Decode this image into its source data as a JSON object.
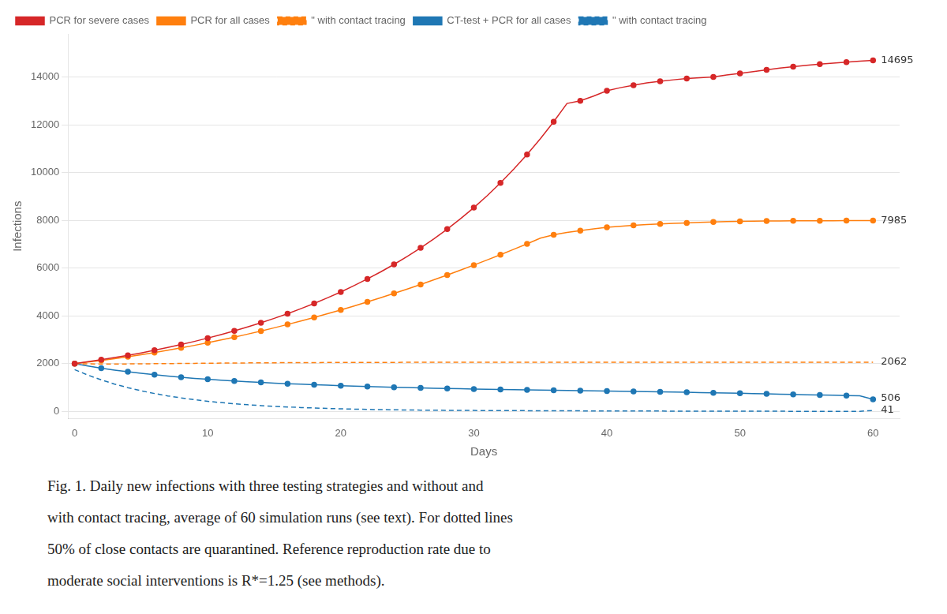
{
  "chart_data": {
    "type": "line",
    "x": [
      0,
      1,
      2,
      3,
      4,
      5,
      6,
      7,
      8,
      9,
      10,
      11,
      12,
      13,
      14,
      15,
      16,
      17,
      18,
      19,
      20,
      21,
      22,
      23,
      24,
      25,
      26,
      27,
      28,
      29,
      30,
      31,
      32,
      33,
      34,
      35,
      36,
      37,
      38,
      39,
      40,
      41,
      42,
      43,
      44,
      45,
      46,
      47,
      48,
      49,
      50,
      51,
      52,
      53,
      54,
      55,
      56,
      57,
      58,
      59,
      60
    ],
    "series": [
      {
        "name": "PCR for severe cases",
        "color": "#d62728",
        "line_style": "solid",
        "marker": "circle",
        "values": [
          2000,
          2080,
          2165,
          2255,
          2350,
          2450,
          2560,
          2675,
          2800,
          2930,
          3070,
          3215,
          3370,
          3535,
          3710,
          3895,
          4090,
          4300,
          4520,
          4755,
          5000,
          5265,
          5545,
          5840,
          6155,
          6490,
          6845,
          7225,
          7630,
          8065,
          8530,
          9030,
          9565,
          10140,
          10755,
          11415,
          12125,
          12890,
          13000,
          13200,
          13420,
          13550,
          13650,
          13750,
          13820,
          13880,
          13930,
          13970,
          14000,
          14080,
          14150,
          14220,
          14300,
          14370,
          14430,
          14490,
          14540,
          14580,
          14620,
          14660,
          14695
        ]
      },
      {
        "name": "PCR for all cases",
        "color": "#ff7f0e",
        "line_style": "solid",
        "marker": "circle",
        "values": [
          2000,
          2065,
          2135,
          2210,
          2290,
          2375,
          2465,
          2560,
          2660,
          2765,
          2875,
          2990,
          3110,
          3235,
          3365,
          3500,
          3640,
          3785,
          3935,
          4090,
          4250,
          4415,
          4585,
          4760,
          4940,
          5125,
          5315,
          5510,
          5710,
          5915,
          6125,
          6340,
          6560,
          6785,
          7015,
          7250,
          7390,
          7490,
          7570,
          7640,
          7710,
          7750,
          7790,
          7820,
          7845,
          7870,
          7890,
          7910,
          7930,
          7945,
          7955,
          7962,
          7968,
          7973,
          7977,
          7980,
          7982,
          7983,
          7984,
          7985,
          7985
        ]
      },
      {
        "name": "\" with contact tracing",
        "color": "#ff7f0e",
        "line_style": "dashed",
        "marker": "none",
        "values": [
          2000,
          1990,
          1985,
          1985,
          1988,
          1992,
          1997,
          2002,
          2007,
          2012,
          2018,
          2022,
          2026,
          2030,
          2034,
          2037,
          2040,
          2043,
          2045,
          2047,
          2049,
          2051,
          2052,
          2053,
          2054,
          2055,
          2056,
          2056,
          2057,
          2057,
          2058,
          2058,
          2059,
          2059,
          2059,
          2060,
          2060,
          2060,
          2061,
          2061,
          2061,
          2061,
          2061,
          2062,
          2062,
          2062,
          2062,
          2062,
          2062,
          2062,
          2062,
          2062,
          2062,
          2062,
          2062,
          2062,
          2062,
          2062,
          2062,
          2062,
          2062
        ]
      },
      {
        "name": "CT-test + PCR for all cases",
        "color": "#1f77b4",
        "line_style": "solid",
        "marker": "circle",
        "values": [
          2000,
          1900,
          1810,
          1730,
          1660,
          1595,
          1535,
          1480,
          1430,
          1385,
          1345,
          1308,
          1274,
          1243,
          1214,
          1187,
          1162,
          1139,
          1117,
          1097,
          1078,
          1060,
          1043,
          1027,
          1012,
          998,
          985,
          972,
          960,
          949,
          938,
          927,
          917,
          908,
          899,
          890,
          882,
          874,
          866,
          859,
          852,
          845,
          838,
          831,
          820,
          810,
          800,
          790,
          780,
          770,
          760,
          748,
          736,
          724,
          712,
          700,
          688,
          676,
          664,
          652,
          506
        ]
      },
      {
        "name": "\" with contact tracing",
        "color": "#1f77b4",
        "line_style": "dashed",
        "marker": "none",
        "values": [
          1750,
          1520,
          1320,
          1145,
          995,
          865,
          750,
          650,
          565,
          490,
          425,
          370,
          322,
          280,
          244,
          213,
          186,
          163,
          143,
          125,
          110,
          97,
          86,
          76,
          68,
          61,
          55,
          50,
          46,
          43,
          40,
          37,
          35,
          33,
          31,
          29,
          27,
          25,
          23,
          21,
          19,
          18,
          17,
          16,
          15,
          14,
          13,
          12,
          11,
          10,
          9,
          8,
          7,
          7,
          6,
          6,
          5,
          5,
          4,
          4,
          41
        ]
      }
    ],
    "xlabel": "Days",
    "ylabel": "Infections",
    "xlim": [
      -0.5,
      62
    ],
    "ylim": [
      -300,
      15800
    ],
    "xticks": [
      0,
      10,
      20,
      30,
      40,
      50,
      60
    ],
    "yticks": [
      0,
      2000,
      4000,
      6000,
      8000,
      10000,
      12000,
      14000
    ],
    "grid": "y",
    "legend": "upper left",
    "annotations": [
      {
        "text": "14695",
        "x": 60,
        "y": 14695
      },
      {
        "text": "7985",
        "x": 60,
        "y": 7985
      },
      {
        "text": "2062",
        "x": 60,
        "y": 2062
      },
      {
        "text": "506",
        "x": 60,
        "y": 506
      },
      {
        "text": "41",
        "x": 60,
        "y": 41
      }
    ],
    "caption": [
      "Fig. 1.   Daily new infections with three testing strategies and without and",
      "with contact tracing, average of 60 simulation runs (see text). For dotted lines",
      "50% of close contacts are quarantined. Reference reproduction rate due to",
      "moderate social interventions is R*=1.25 (see methods)."
    ]
  }
}
